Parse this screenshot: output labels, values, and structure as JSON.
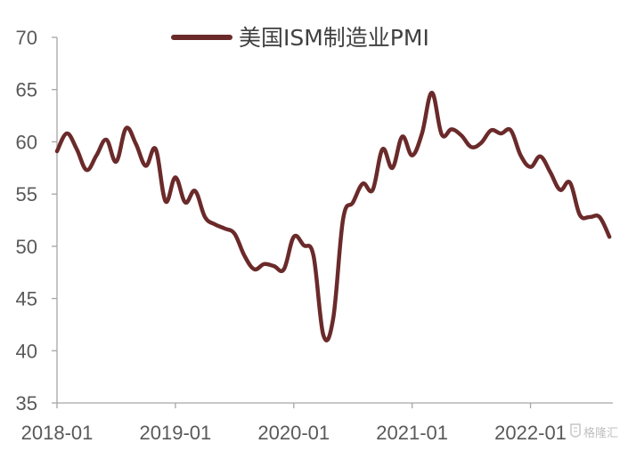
{
  "chart_data": {
    "type": "line",
    "title": "",
    "xlabel": "",
    "ylabel": "",
    "ylim": [
      35,
      70
    ],
    "y_ticks": [
      35,
      40,
      45,
      50,
      55,
      60,
      65,
      70
    ],
    "x_tick_labels": [
      "2018-01",
      "2019-01",
      "2020-01",
      "2021-01",
      "2022-01"
    ],
    "grid": false,
    "legend_position": "top",
    "series": [
      {
        "name": "美国ISM制造业PMI",
        "color": "#6b2a2a",
        "x": [
          "2018-01",
          "2018-02",
          "2018-03",
          "2018-04",
          "2018-05",
          "2018-06",
          "2018-07",
          "2018-08",
          "2018-09",
          "2018-10",
          "2018-11",
          "2018-12",
          "2019-01",
          "2019-02",
          "2019-03",
          "2019-04",
          "2019-05",
          "2019-06",
          "2019-07",
          "2019-08",
          "2019-09",
          "2019-10",
          "2019-11",
          "2019-12",
          "2020-01",
          "2020-02",
          "2020-03",
          "2020-04",
          "2020-05",
          "2020-06",
          "2020-07",
          "2020-08",
          "2020-09",
          "2020-10",
          "2020-11",
          "2020-12",
          "2021-01",
          "2021-02",
          "2021-03",
          "2021-04",
          "2021-05",
          "2021-06",
          "2021-07",
          "2021-08",
          "2021-09",
          "2021-10",
          "2021-11",
          "2021-12",
          "2022-01",
          "2022-02",
          "2022-03",
          "2022-04",
          "2022-05",
          "2022-06",
          "2022-07",
          "2022-08",
          "2022-09"
        ],
        "values": [
          59.1,
          60.8,
          59.3,
          57.3,
          58.7,
          60.2,
          58.1,
          61.3,
          59.8,
          57.7,
          59.3,
          54.3,
          56.6,
          54.2,
          55.3,
          52.8,
          52.1,
          51.7,
          51.2,
          49.1,
          47.8,
          48.3,
          48.1,
          47.8,
          50.9,
          50.1,
          49.1,
          41.5,
          43.1,
          52.6,
          54.2,
          56.0,
          55.4,
          59.3,
          57.5,
          60.5,
          58.7,
          60.8,
          64.7,
          60.7,
          61.2,
          60.6,
          59.5,
          59.9,
          61.1,
          60.8,
          61.1,
          58.7,
          57.6,
          58.6,
          57.1,
          55.4,
          56.1,
          53.0,
          52.8,
          52.8,
          50.9
        ]
      }
    ]
  },
  "watermark": {
    "text": "格隆汇",
    "icon": "shield-logo-icon"
  }
}
